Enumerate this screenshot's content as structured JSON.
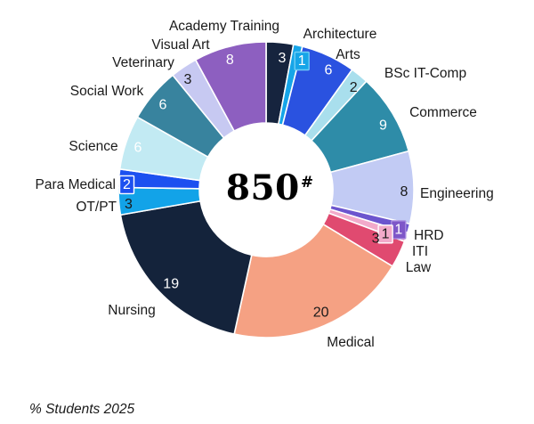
{
  "chart_data": {
    "type": "pie",
    "subtype": "donut",
    "title": "",
    "center_label": {
      "value": "850",
      "superscript": "#"
    },
    "footnote": "% Students 2025",
    "start_angle_deg": 0,
    "direction": "clockwise",
    "hole_ratio": 0.45,
    "legend_position": "none",
    "data_labels": "values-inside-and-category-names-outside",
    "categories": [
      "Academy Training",
      "Architecture",
      "Arts",
      "BSc IT-Comp",
      "Commerce",
      "Engineering",
      "HRD",
      "ITI",
      "Law",
      "Medical",
      "Nursing",
      "OT/PT",
      "Para Medical",
      "Science",
      "Social Work",
      "Veterinary",
      "Visual Art"
    ],
    "values": [
      3,
      1,
      6,
      2,
      9,
      8,
      1,
      1,
      3,
      20,
      19,
      3,
      2,
      6,
      6,
      3,
      8
    ],
    "colors": [
      "#16243E",
      "#16A5E8",
      "#2A52E0",
      "#A9DFED",
      "#2E8CA8",
      "#C2CBF4",
      "#6C55CE",
      "#F2AACA",
      "#E04A70",
      "#F5A183",
      "#14233B",
      "#12A3E8",
      "#1C50F0",
      "#C2EAF3",
      "#38839E",
      "#C7C9F2",
      "#8D5FC0"
    ]
  }
}
